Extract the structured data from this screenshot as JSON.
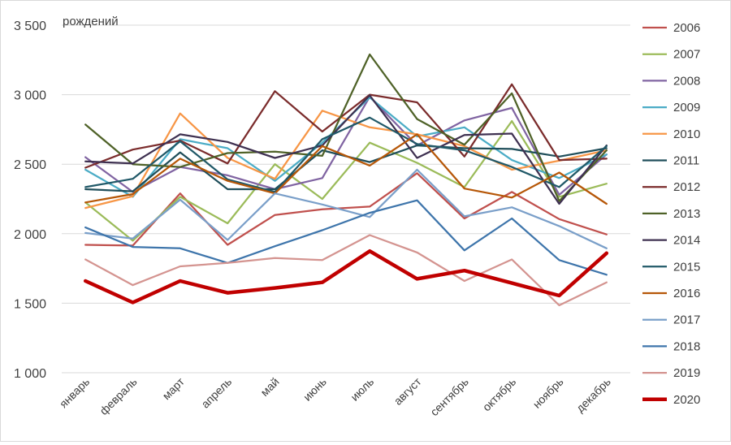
{
  "chart_data": {
    "type": "line",
    "ylabel": "рождений",
    "ylim": [
      1000,
      3500
    ],
    "yticks": [
      1000,
      1500,
      2000,
      2500,
      3000,
      3500
    ],
    "ytick_labels": [
      "1 000",
      "1 500",
      "2 000",
      "2 500",
      "3 000",
      "3 500"
    ],
    "grid": "horizontal",
    "legend_position": "right",
    "categories": [
      "январь",
      "февраль",
      "март",
      "апрель",
      "май",
      "июнь",
      "июль",
      "август",
      "сентябрь",
      "октябрь",
      "ноябрь",
      "декабрь"
    ],
    "series": [
      {
        "name": "2006",
        "color": "#c0504d",
        "values": [
          1920,
          1915,
          2290,
          1920,
          2135,
          2175,
          2195,
          2435,
          2110,
          2300,
          2105,
          1995
        ]
      },
      {
        "name": "2007",
        "color": "#9bbb59",
        "values": [
          2225,
          1950,
          2265,
          2075,
          2500,
          2250,
          2655,
          2510,
          2335,
          2810,
          2265,
          2360
        ]
      },
      {
        "name": "2008",
        "color": "#8064a2",
        "values": [
          2550,
          2300,
          2480,
          2420,
          2320,
          2400,
          2985,
          2635,
          2815,
          2905,
          2280,
          2570
        ]
      },
      {
        "name": "2009",
        "color": "#4bacc6",
        "values": [
          2460,
          2265,
          2680,
          2615,
          2380,
          2655,
          2980,
          2700,
          2765,
          2530,
          2400,
          2570
        ]
      },
      {
        "name": "2010",
        "color": "#f79646",
        "values": [
          2185,
          2270,
          2865,
          2545,
          2395,
          2885,
          2765,
          2715,
          2630,
          2460,
          2525,
          2600
        ]
      },
      {
        "name": "2011",
        "color": "#1f4e5a",
        "values": [
          2320,
          2305,
          2585,
          2320,
          2320,
          2600,
          2515,
          2635,
          2615,
          2610,
          2555,
          2615
        ]
      },
      {
        "name": "2012",
        "color": "#7b2c2c",
        "values": [
          2475,
          2605,
          2670,
          2505,
          3025,
          2735,
          3000,
          2945,
          2555,
          3075,
          2530,
          2540
        ]
      },
      {
        "name": "2013",
        "color": "#4f6228",
        "values": [
          2785,
          2500,
          2480,
          2580,
          2590,
          2560,
          3290,
          2825,
          2640,
          3010,
          2235,
          2600
        ]
      },
      {
        "name": "2014",
        "color": "#3f3151",
        "values": [
          2520,
          2505,
          2715,
          2660,
          2545,
          2635,
          2995,
          2545,
          2710,
          2720,
          2215,
          2635
        ]
      },
      {
        "name": "2015",
        "color": "#215968",
        "values": [
          2335,
          2395,
          2665,
          2390,
          2300,
          2680,
          2835,
          2645,
          2600,
          2480,
          2335,
          2630
        ]
      },
      {
        "name": "2016",
        "color": "#b65708",
        "values": [
          2225,
          2285,
          2540,
          2380,
          2290,
          2630,
          2490,
          2715,
          2325,
          2260,
          2440,
          2215
        ]
      },
      {
        "name": "2017",
        "color": "#7a9fc9",
        "values": [
          2005,
          1965,
          2245,
          1955,
          2290,
          2210,
          2120,
          2460,
          2125,
          2190,
          2055,
          1895
        ]
      },
      {
        "name": "2018",
        "color": "#3e75ab",
        "values": [
          2045,
          1905,
          1895,
          1790,
          1910,
          2025,
          2150,
          2240,
          1880,
          2110,
          1810,
          1705
        ]
      },
      {
        "name": "2019",
        "color": "#d49490",
        "values": [
          1815,
          1630,
          1765,
          1790,
          1825,
          1810,
          1990,
          1865,
          1660,
          1815,
          1485,
          1650
        ]
      },
      {
        "name": "2020",
        "color": "#c00000",
        "bold": true,
        "values": [
          1660,
          1505,
          1660,
          1575,
          1610,
          1650,
          1875,
          1675,
          1735,
          1645,
          1555,
          1860
        ]
      }
    ]
  }
}
